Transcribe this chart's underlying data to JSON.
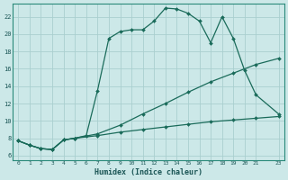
{
  "xlabel": "Humidex (Indice chaleur)",
  "bg_color": "#cce8e8",
  "line_color": "#1a6b5a",
  "grid_color": "#aacfcf",
  "xlim": [
    -0.5,
    23.5
  ],
  "ylim": [
    5.5,
    23.5
  ],
  "yticks": [
    6,
    8,
    10,
    12,
    14,
    16,
    18,
    20,
    22
  ],
  "xticks": [
    0,
    1,
    2,
    3,
    4,
    5,
    6,
    7,
    8,
    9,
    10,
    11,
    12,
    13,
    14,
    15,
    16,
    17,
    18,
    19,
    20,
    21,
    23
  ],
  "line1_x": [
    0,
    1,
    2,
    3,
    4,
    5,
    6,
    7,
    8,
    9,
    10,
    11,
    12,
    13,
    14,
    15,
    16,
    17,
    18,
    19,
    20,
    21,
    23
  ],
  "line1_y": [
    7.7,
    7.2,
    6.8,
    6.7,
    7.8,
    8.0,
    8.3,
    13.5,
    19.5,
    20.3,
    20.5,
    20.5,
    21.5,
    23.0,
    22.9,
    22.4,
    21.5,
    19.0,
    22.0,
    19.5,
    15.8,
    13.0,
    10.8
  ],
  "line2_x": [
    0,
    1,
    2,
    3,
    4,
    5,
    7,
    9,
    11,
    13,
    15,
    17,
    19,
    21,
    23
  ],
  "line2_y": [
    7.7,
    7.2,
    6.8,
    6.7,
    7.8,
    8.0,
    8.5,
    9.5,
    10.8,
    12.0,
    13.3,
    14.5,
    15.5,
    16.5,
    17.2
  ],
  "line3_x": [
    0,
    1,
    2,
    3,
    4,
    5,
    7,
    9,
    11,
    13,
    15,
    17,
    19,
    21,
    23
  ],
  "line3_y": [
    7.7,
    7.2,
    6.8,
    6.7,
    7.8,
    8.0,
    8.3,
    8.7,
    9.0,
    9.3,
    9.6,
    9.9,
    10.1,
    10.3,
    10.5
  ]
}
